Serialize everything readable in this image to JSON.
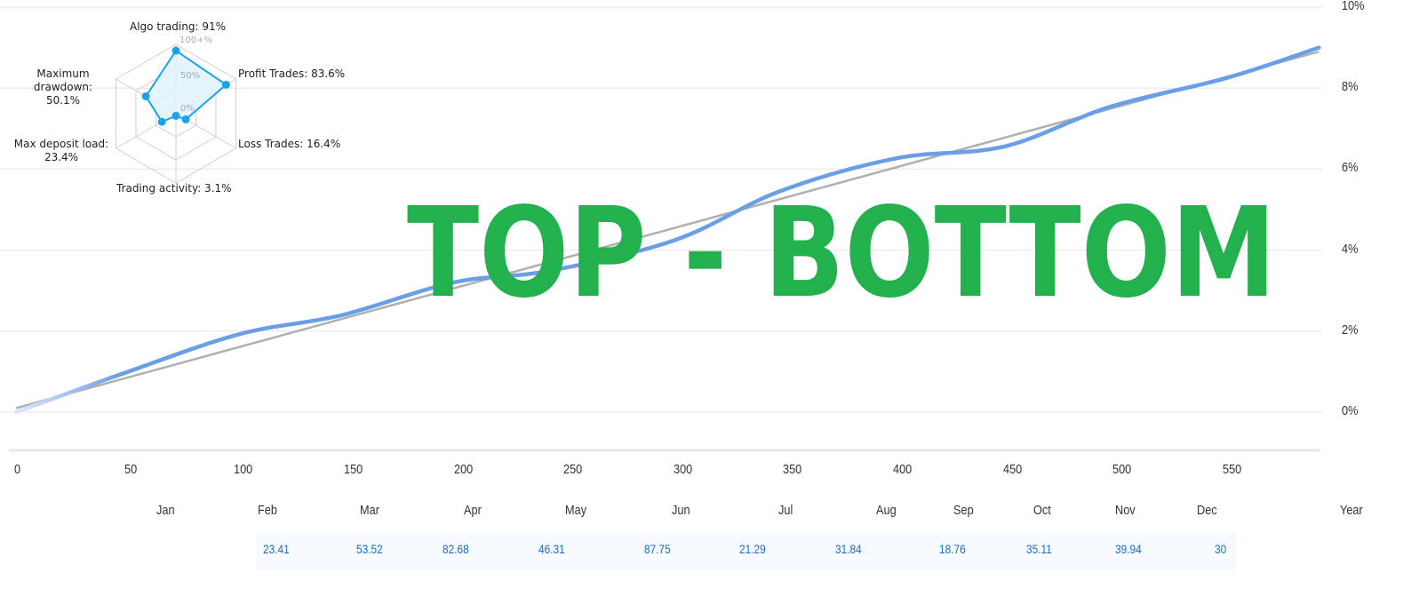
{
  "chart_data": [
    {
      "type": "radar",
      "axes": [
        {
          "label": "Algo trading: 91%",
          "value": 91
        },
        {
          "label": "Profit Trades: 83.6%",
          "value": 83.6
        },
        {
          "label": "Loss Trades: 16.4%",
          "value": 16.4
        },
        {
          "label": "Trading activity: 3.1%",
          "value": 3.1
        },
        {
          "label": "Max deposit load: 23.4%",
          "value": 23.4
        },
        {
          "label": "Maximum drawdown: 50.1%",
          "value": 50.1
        }
      ],
      "ring_labels": [
        "100+%",
        "50%",
        "0%"
      ],
      "colors": {
        "line": "#1aa3e8",
        "fill": "#dff3fd",
        "grid": "#d0d0d0"
      }
    },
    {
      "type": "line",
      "x_ticks": [
        "0",
        "50",
        "100",
        "150",
        "200",
        "250",
        "300",
        "350",
        "400",
        "450",
        "500",
        "550"
      ],
      "y_ticks": [
        "0%",
        "2%",
        "4%",
        "6%",
        "8%",
        "10%"
      ],
      "xlim": [
        0,
        595
      ],
      "ylim": [
        -0.9,
        10
      ],
      "grid": true,
      "series": [
        {
          "color": "#6a9fe8",
          "x": [
            0,
            49,
            102,
            148,
            199,
            243,
            300,
            348,
            401,
            450,
            498,
            551,
            593
          ],
          "y": [
            0,
            0.96,
            1.93,
            2.39,
            3.2,
            3.49,
            4.25,
            5.46,
            6.27,
            6.56,
            7.54,
            8.25,
            9.0
          ]
        },
        {
          "color": "#b0b0b0",
          "x": [
            0,
            593
          ],
          "y": [
            0.1,
            8.9
          ]
        }
      ],
      "months": [
        "Jan",
        "Feb",
        "Mar",
        "Apr",
        "May",
        "Jun",
        "Jul",
        "Aug",
        "Sep",
        "Oct",
        "Nov",
        "Dec",
        "Year"
      ],
      "month_values": [
        "23.41",
        "53.52",
        "82.68",
        "46.31",
        "87.75",
        "21.29",
        "31.84",
        "18.76",
        "35.11",
        "39.94",
        "30"
      ]
    }
  ],
  "watermark": {
    "text": "TOP - BOTTOM",
    "color": "#22b14c"
  }
}
